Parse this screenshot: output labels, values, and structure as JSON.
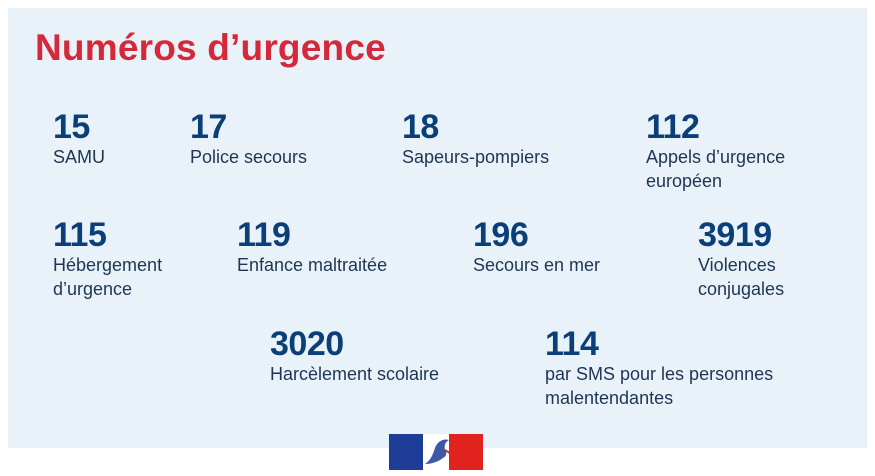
{
  "title": "Numéros d’urgence",
  "colors": {
    "title": "#d5283a",
    "number": "#0b3f78",
    "label": "#1f3553",
    "background": "#e9f2f8",
    "flag_blue": "#1f3c97",
    "flag_red": "#e1231f"
  },
  "entries": [
    {
      "number": "15",
      "label": "SAMU"
    },
    {
      "number": "17",
      "label": "Police secours"
    },
    {
      "number": "18",
      "label": "Sapeurs-pompiers"
    },
    {
      "number": "112",
      "label": "Appels d’urgence\neuropéen"
    },
    {
      "number": "115",
      "label": "Hébergement\nd’urgence"
    },
    {
      "number": "119",
      "label": "Enfance maltraitée"
    },
    {
      "number": "196",
      "label": "Secours en mer"
    },
    {
      "number": "3919",
      "label": "Violences\nconjugales"
    },
    {
      "number": "3020",
      "label": "Harcèlement scolaire"
    },
    {
      "number": "114",
      "label": "par SMS pour les personnes\nmalentendantes"
    }
  ],
  "logo": {
    "icon": "marianne-logo-icon"
  }
}
